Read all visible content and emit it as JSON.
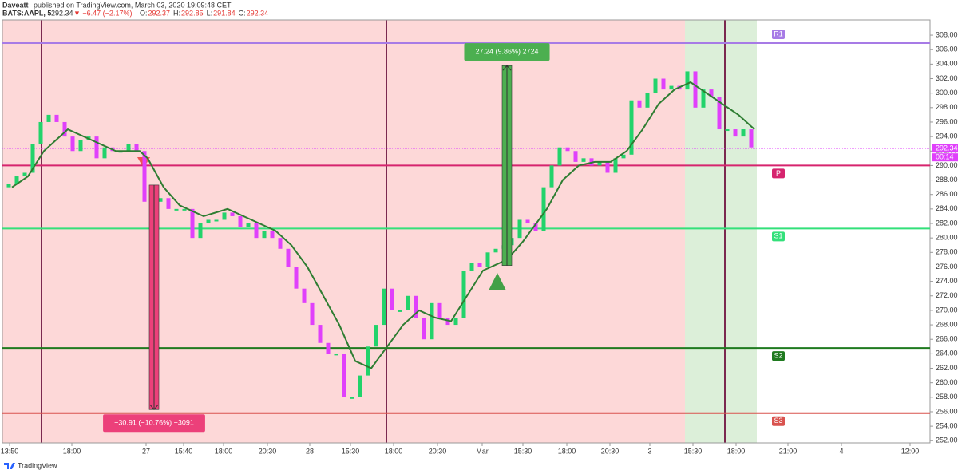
{
  "header": {
    "author": "Daveatt",
    "published": "published on TradingView.com, March 03, 2020 19:09:48 CET",
    "symbol": "BATS:AAPL, 5",
    "price": "292.34",
    "change": "▼ −6.47 (−2.17%)",
    "ohlc": [
      {
        "key": "O:",
        "value": "292.37"
      },
      {
        "key": "H:",
        "value": "292.85"
      },
      {
        "key": "L:",
        "value": "291.84"
      },
      {
        "key": "C:",
        "value": "292.34"
      }
    ]
  },
  "footer": {
    "brand": "TradingView"
  },
  "chart_data": {
    "type": "candlestick",
    "ylim": [
      251.7,
      310.1
    ],
    "yticks": [
      {
        "value": 252,
        "label": "252.00"
      },
      {
        "value": 254,
        "label": "254.00"
      },
      {
        "value": 256,
        "label": "256.00"
      },
      {
        "value": 258,
        "label": "258.00"
      },
      {
        "value": 260,
        "label": "260.00"
      },
      {
        "value": 262,
        "label": "262.00"
      },
      {
        "value": 264,
        "label": "264.00"
      },
      {
        "value": 266,
        "label": "266.00"
      },
      {
        "value": 268,
        "label": "268.00"
      },
      {
        "value": 270,
        "label": "270.00"
      },
      {
        "value": 272,
        "label": "272.00"
      },
      {
        "value": 274,
        "label": "274.00"
      },
      {
        "value": 276,
        "label": "276.00"
      },
      {
        "value": 278,
        "label": "278.00"
      },
      {
        "value": 280,
        "label": "280.00"
      },
      {
        "value": 282,
        "label": "282.00"
      },
      {
        "value": 284,
        "label": "284.00"
      },
      {
        "value": 286,
        "label": "286.00"
      },
      {
        "value": 288,
        "label": "288.00"
      },
      {
        "value": 290,
        "label": "290.00"
      },
      {
        "value": 292,
        "label": "292.00"
      },
      {
        "value": 294,
        "label": "294.00"
      },
      {
        "value": 296,
        "label": "296.00"
      },
      {
        "value": 298,
        "label": "298.00"
      },
      {
        "value": 300,
        "label": "300.00"
      },
      {
        "value": 302,
        "label": "302.00"
      },
      {
        "value": 304,
        "label": "304.00"
      },
      {
        "value": 306,
        "label": "306.00"
      },
      {
        "value": 308,
        "label": "308.00"
      }
    ],
    "xlim": [
      -2,
      288.5
    ],
    "xticks": [
      {
        "value": 0.25,
        "label": "13:50"
      },
      {
        "value": 19.75,
        "label": "18:00"
      },
      {
        "value": 43,
        "label": "27"
      },
      {
        "value": 54.75,
        "label": "15:40"
      },
      {
        "value": 67.25,
        "label": "18:00"
      },
      {
        "value": 81,
        "label": "20:30"
      },
      {
        "value": 94.25,
        "label": "28"
      },
      {
        "value": 107,
        "label": "15:30"
      },
      {
        "value": 120.5,
        "label": "18:00"
      },
      {
        "value": 134.25,
        "label": "20:30"
      },
      {
        "value": 148.25,
        "label": "Mar"
      },
      {
        "value": 161,
        "label": "15:30"
      },
      {
        "value": 174.75,
        "label": "18:00"
      },
      {
        "value": 188.25,
        "label": "20:30"
      },
      {
        "value": 200.75,
        "label": "3"
      },
      {
        "value": 214.25,
        "label": "15:30"
      },
      {
        "value": 227.75,
        "label": "18:00"
      },
      {
        "value": 244,
        "label": "21:00"
      },
      {
        "value": 260.75,
        "label": "4"
      },
      {
        "value": 282.25,
        "label": "12:00"
      }
    ],
    "price": {
      "up_color": "#22d36b",
      "down_color": "#e040fb",
      "x": [
        0,
        2.5,
        5,
        7.5,
        10,
        12.5,
        15,
        17.5,
        20,
        22.5,
        25,
        27.5,
        30,
        32.5,
        35,
        37.5,
        40,
        42.5,
        45,
        47.5,
        50,
        52.5,
        55,
        57.5,
        60,
        62.5,
        65,
        67.5,
        70,
        72.5,
        75,
        77.5,
        80,
        82.5,
        85,
        87.5,
        90,
        92.5,
        95,
        97.5,
        100,
        102.5,
        105,
        107.5,
        110,
        112.5,
        115,
        117.5,
        120,
        122.5,
        125,
        127.5,
        130,
        132.5,
        135,
        137.5,
        140,
        142.5,
        145,
        147.5,
        150,
        152.5,
        155,
        157.5,
        160,
        162.5,
        165,
        167.5,
        170,
        172.5,
        175,
        177.5,
        180,
        182.5,
        185,
        187.5,
        190,
        192.5,
        195,
        197.5,
        200,
        202.5,
        205,
        207.5,
        210,
        212.5,
        215,
        217.5,
        220,
        222.5,
        225,
        227.5,
        230,
        232.5
      ],
      "values": [
        287.5,
        288.5,
        289,
        293,
        296,
        297,
        296,
        294,
        292,
        293.5,
        294,
        291,
        292.5,
        292,
        292,
        293,
        292,
        285,
        285,
        285.5,
        284,
        284,
        284,
        280,
        282,
        282.5,
        282.5,
        283.5,
        283,
        281.5,
        282,
        280,
        281,
        280,
        278.5,
        276,
        273,
        271,
        268,
        265.5,
        264,
        264,
        258,
        258,
        261,
        265,
        268,
        273,
        270,
        270,
        272,
        269,
        266,
        271,
        269,
        268,
        269,
        275.5,
        276.5,
        276,
        278,
        278.5,
        279,
        280,
        282.5,
        282,
        281,
        287,
        290,
        292.5,
        292,
        290.5,
        291,
        290,
        290.5,
        289,
        291,
        291.5,
        299,
        298,
        300,
        302,
        300.5,
        301,
        300.5,
        303,
        298,
        300.5,
        299.5,
        295,
        295,
        294,
        295,
        292.5
      ]
    },
    "ma": {
      "color": "#2e7d32",
      "x": [
        1,
        6,
        11,
        18.5,
        26,
        33.5,
        41,
        43.5,
        48.5,
        53.5,
        61,
        68.5,
        76,
        83.5,
        88.5,
        93.5,
        98.5,
        103.5,
        108.5,
        113.5,
        118.5,
        123.5,
        128.5,
        133.5,
        138.5,
        143.5,
        148.5,
        156,
        161,
        168.5,
        173.5,
        178.5,
        183.5,
        188.5,
        193.5,
        198.5,
        203.5,
        208.5,
        213.5,
        218.5,
        223.5,
        228.5,
        233.5
      ],
      "values": [
        287,
        288.5,
        292,
        295,
        293.5,
        292,
        292,
        291,
        287,
        284.5,
        283,
        284,
        282.5,
        281,
        279,
        276,
        272,
        268,
        263,
        262,
        265,
        268,
        270,
        269,
        268.5,
        272,
        275.5,
        277,
        279.5,
        284,
        288,
        290,
        290.5,
        290.5,
        292,
        295,
        298.5,
        300.5,
        301.5,
        300,
        298.5,
        297,
        295
      ]
    },
    "levels": [
      {
        "name": "R1",
        "value": 306.9,
        "color": "#a77be6"
      },
      {
        "name": "P",
        "value": 290,
        "color": "#d6246e"
      },
      {
        "name": "S1",
        "value": 281.3,
        "color": "#33e07a"
      },
      {
        "name": "S2",
        "value": 264.8,
        "color": "#1f7a1f"
      },
      {
        "name": "S3",
        "value": 255.8,
        "color": "#d9534f"
      }
    ],
    "last_price": {
      "value": 292.34,
      "label": "292.34",
      "countdown": "00:14",
      "color": "#e040fb"
    },
    "measures": [
      {
        "label": "−30.91 (−10.76%) −3091",
        "x": 45.5,
        "from": 287.3,
        "to": 256.3,
        "color": "#ec407a"
      },
      {
        "label": "27.24 (9.86%) 2724",
        "x": 156,
        "from": 276.2,
        "to": 303.8,
        "color": "#4caf50"
      }
    ]
  }
}
